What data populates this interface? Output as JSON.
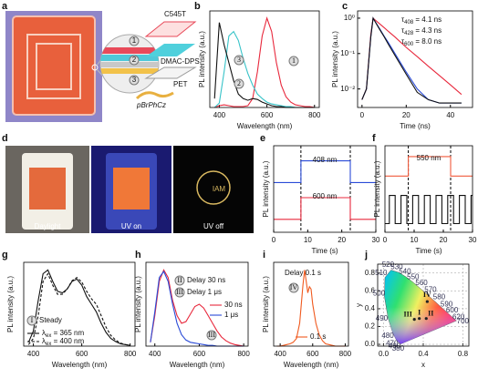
{
  "photo_panels": [
    {
      "panel_label": "a",
      "layer_numbers": [
        "1",
        "2",
        "3"
      ],
      "layer_names": [
        "C545T",
        "DMAC-DPS",
        "PET",
        "pBrPhCz"
      ]
    },
    {
      "panel_label": "d",
      "captions": [
        "Daylight",
        "UV on",
        "UV off"
      ],
      "logo_text": "IAM"
    }
  ],
  "chart_data": [
    {
      "type": "line",
      "panel_label": "b",
      "xlabel": "Wavelength (nm)",
      "ylabel": "PL intensity (a.u.)",
      "xlim": [
        360,
        820
      ],
      "xticks": [
        400,
        600,
        800
      ],
      "ylim": [
        0,
        1.08
      ],
      "x": [
        380,
        400,
        420,
        440,
        460,
        480,
        500,
        520,
        540,
        560,
        580,
        600,
        620,
        640,
        660,
        680,
        700,
        720,
        740,
        760,
        780,
        800
      ],
      "series": [
        {
          "color": "#e8283c",
          "values": [
            0,
            0.02,
            0.03,
            0.02,
            0.01,
            0.01,
            0.01,
            0.02,
            0.1,
            0.4,
            0.8,
            1.0,
            0.85,
            0.5,
            0.25,
            0.12,
            0.06,
            0.03,
            0.02,
            0.01,
            0.01,
            0
          ]
        },
        {
          "color": "#37c3c8",
          "values": [
            0,
            0.05,
            0.4,
            0.8,
            0.85,
            0.75,
            0.55,
            0.38,
            0.25,
            0.15,
            0.1,
            0.06,
            0.04,
            0.03,
            0.02,
            0.01,
            0.01,
            0,
            0,
            0,
            0,
            0
          ]
        },
        {
          "color": "#111111",
          "values": [
            0.1,
            0.95,
            0.7,
            0.5,
            0.3,
            0.15,
            0.1,
            0.08,
            0.1,
            0.09,
            0.06,
            0.04,
            0.02,
            0.01,
            0.01,
            0,
            0,
            0,
            0,
            0,
            0,
            0
          ]
        }
      ],
      "annotations": [
        {
          "text": "1",
          "circled": true
        },
        {
          "text": "2",
          "circled": true
        },
        {
          "text": "3",
          "circled": true
        }
      ]
    },
    {
      "type": "line",
      "panel_label": "c",
      "xlabel": "Time (ns)",
      "ylabel": "PL intensity (a.u.)",
      "log_y": true,
      "xlim": [
        -2,
        50
      ],
      "xticks": [
        0,
        20,
        40
      ],
      "ylim": [
        0.003,
        1.6
      ],
      "yticks": [
        {
          "value": 0.01,
          "label": "10⁻²"
        },
        {
          "value": 0.1,
          "label": "10⁻¹"
        },
        {
          "value": 1,
          "label": "10⁰"
        }
      ],
      "x": [
        0,
        2,
        4,
        5,
        6,
        8,
        10,
        12,
        15,
        20,
        25,
        30,
        35,
        40,
        45
      ],
      "series": [
        {
          "color": "#e8283c",
          "values": [
            0.005,
            0.01,
            0.35,
            1,
            0.88,
            0.69,
            0.54,
            0.42,
            0.29,
            0.15,
            0.082,
            0.044,
            0.024,
            0.013,
            0.007
          ]
        },
        {
          "color": "#2a4bd7",
          "values": [
            0.005,
            0.01,
            0.3,
            1,
            0.79,
            0.5,
            0.31,
            0.2,
            0.098,
            0.03,
            0.01,
            0.005,
            0.004,
            0.004,
            0.004
          ]
        },
        {
          "color": "#111111",
          "values": [
            0.005,
            0.01,
            0.3,
            1,
            0.78,
            0.48,
            0.3,
            0.18,
            0.087,
            0.026,
            0.008,
            0.005,
            0.004,
            0.004,
            0.004
          ]
        }
      ],
      "annotations": [
        {
          "text": "τ408 = 4.1 ns"
        },
        {
          "text": "τ428 = 4.3 ns"
        },
        {
          "text": "τ600 = 8.0 ns"
        }
      ]
    },
    {
      "type": "line",
      "panel_label": "e",
      "xlabel": "Time (s)",
      "ylabel": "PL intensity (a.u.)",
      "legend": "inline",
      "xlim": [
        0,
        30
      ],
      "xticks": [
        0,
        10,
        20,
        30
      ],
      "ylim": [
        0,
        4
      ],
      "dashed_lines_x": [
        8,
        22.5
      ],
      "series": [
        {
          "name": "408 nm",
          "color": "#2a4bd7",
          "x": [
            0,
            8,
            8,
            22.5,
            22.5,
            30
          ],
          "values": [
            2.3,
            2.3,
            3.3,
            3.3,
            2.3,
            2.3
          ]
        },
        {
          "name": "600 nm",
          "color": "#e8283c",
          "x": [
            0,
            8,
            8,
            22.5,
            22.5,
            30
          ],
          "values": [
            0.6,
            0.6,
            1.6,
            1.6,
            0.6,
            0.6
          ]
        }
      ]
    },
    {
      "type": "line",
      "panel_label": "f",
      "xlabel": "Time (s)",
      "ylabel": "PL intensity (a.u.)",
      "legend": "inline",
      "xlim": [
        0,
        30
      ],
      "xticks": [
        0,
        10,
        20,
        30
      ],
      "ylim": [
        0,
        4
      ],
      "dashed_lines_x": [
        8,
        22.5
      ],
      "series": [
        {
          "name": "550 nm",
          "color": "#f05a3c",
          "x": [
            0,
            8,
            8,
            22.5,
            22.5,
            30
          ],
          "values": [
            2.6,
            2.6,
            3.5,
            3.5,
            2.6,
            2.6
          ]
        },
        {
          "color": "#111111",
          "x": [
            0,
            1.5,
            1.5,
            3.5,
            3.5,
            5.5,
            5.5,
            7.5,
            7.5,
            9.5,
            9.5,
            11.5,
            11.5,
            13.5,
            13.5,
            15.5,
            15.5,
            17.5,
            17.5,
            19.5,
            19.5,
            21.5,
            21.5,
            23.5,
            23.5,
            25.5,
            25.5,
            27.5,
            27.5,
            29.5,
            29.5,
            30
          ],
          "values": [
            0.4,
            0.4,
            1.7,
            1.7,
            0.4,
            0.4,
            1.7,
            1.7,
            0.4,
            0.4,
            1.7,
            1.7,
            0.4,
            0.4,
            1.7,
            1.7,
            0.4,
            0.4,
            1.7,
            1.7,
            0.4,
            0.4,
            1.7,
            1.7,
            0.4,
            0.4,
            1.7,
            1.7,
            0.4,
            0.4,
            1.7,
            1.7
          ]
        }
      ]
    },
    {
      "type": "line",
      "panel_label": "g",
      "xlabel": "Wavelength (nm)",
      "ylabel": "PL intensity (a.u.)",
      "legend": "lower left",
      "xlim": [
        360,
        820
      ],
      "xticks": [
        400,
        600,
        800
      ],
      "ylim": [
        0,
        1.1
      ],
      "x": [
        380,
        400,
        420,
        440,
        460,
        480,
        500,
        520,
        540,
        560,
        580,
        600,
        620,
        640,
        660,
        680,
        700,
        720,
        740,
        760,
        780,
        800
      ],
      "series": [
        {
          "name": "λex = 365 nm",
          "color": "#111111",
          "dashed": false,
          "values": [
            0.05,
            0.2,
            0.6,
            0.95,
            1.0,
            0.85,
            0.72,
            0.7,
            0.75,
            0.85,
            0.88,
            0.8,
            0.65,
            0.55,
            0.45,
            0.3,
            0.18,
            0.1,
            0.06,
            0.03,
            0.02,
            0.01
          ]
        },
        {
          "name": "λex = 400 nm",
          "color": "#111111",
          "dashed": true,
          "values": [
            0.02,
            0.1,
            0.4,
            0.85,
            0.95,
            0.8,
            0.68,
            0.68,
            0.75,
            0.86,
            0.9,
            0.84,
            0.72,
            0.62,
            0.55,
            0.4,
            0.25,
            0.14,
            0.08,
            0.04,
            0.02,
            0.01
          ]
        }
      ],
      "annotations": [
        {
          "text": "I",
          "circled": true
        },
        {
          "text": "Steady"
        }
      ]
    },
    {
      "type": "line",
      "panel_label": "h",
      "xlabel": "Wavelength (nm)",
      "ylabel": "PL intensity (a.u.)",
      "legend": "center right",
      "xlim": [
        360,
        820
      ],
      "xticks": [
        400,
        600,
        800
      ],
      "ylim": [
        0,
        1.1
      ],
      "x": [
        380,
        400,
        420,
        440,
        460,
        480,
        500,
        520,
        540,
        560,
        580,
        600,
        620,
        640,
        660,
        680,
        700,
        720,
        740,
        760,
        780,
        800
      ],
      "series": [
        {
          "name": "30 ns",
          "color": "#e8283c",
          "values": [
            0.05,
            0.4,
            0.85,
            1.0,
            0.9,
            0.6,
            0.4,
            0.3,
            0.32,
            0.42,
            0.52,
            0.55,
            0.5,
            0.4,
            0.3,
            0.2,
            0.12,
            0.07,
            0.04,
            0.02,
            0.01,
            0
          ]
        },
        {
          "name": "1 μs",
          "color": "#2a4bd7",
          "values": [
            0.05,
            0.45,
            0.9,
            0.98,
            0.85,
            0.55,
            0.3,
            0.15,
            0.08,
            0.05,
            0.04,
            0.03,
            0.02,
            0.01,
            0.01,
            0,
            0,
            0,
            0,
            0,
            0,
            0
          ]
        }
      ],
      "annotations": [
        {
          "text": "II",
          "circled": true
        },
        {
          "text": "Delay 30 ns"
        },
        {
          "text": "III",
          "circled": true
        },
        {
          "text": "Delay 1 μs"
        },
        {
          "text": "III",
          "circled": true
        }
      ]
    },
    {
      "type": "line",
      "panel_label": "i",
      "xlabel": "Wavelength (nm)",
      "ylabel": "PL intensity (a.u.)",
      "legend": "lower center",
      "xlim": [
        360,
        820
      ],
      "xticks": [
        400,
        600,
        800
      ],
      "ylim": [
        0,
        1.1
      ],
      "x": [
        380,
        400,
        420,
        440,
        460,
        480,
        500,
        520,
        540,
        550,
        560,
        570,
        580,
        590,
        600,
        620,
        640,
        660,
        680,
        700,
        720,
        740,
        760,
        780,
        800
      ],
      "series": [
        {
          "name": "0.1 s",
          "color": "#f05a1f",
          "values": [
            0,
            0,
            0.01,
            0.02,
            0.03,
            0.05,
            0.1,
            0.3,
            0.8,
            1.0,
            0.85,
            0.7,
            0.78,
            0.75,
            0.55,
            0.3,
            0.15,
            0.07,
            0.03,
            0.02,
            0.01,
            0,
            0,
            0,
            0
          ]
        }
      ],
      "annotations": [
        {
          "text": "Delay 0.1 s"
        },
        {
          "text": "IV",
          "circled": true
        }
      ]
    },
    {
      "type": "scatter",
      "panel_label": "j",
      "xlabel": "x",
      "ylabel": "y",
      "grid": true,
      "xlim": [
        -0.06,
        0.86
      ],
      "xticks": [
        {
          "value": 0,
          "label": "0.0"
        },
        0.4,
        0.8
      ],
      "ylim": [
        -0.02,
        0.9
      ],
      "yticks": [
        {
          "value": 0,
          "label": "0.0"
        },
        0.2,
        0.4,
        0.6,
        0.8
      ],
      "categories": [
        "I",
        "II",
        "III",
        "IV"
      ],
      "x": [
        0.36,
        0.43,
        0.31,
        0.44
      ],
      "values": [
        0.29,
        0.29,
        0.28,
        0.48
      ],
      "color": "#222222",
      "locus_labels": [
        "380",
        "460",
        "470",
        "480",
        "490",
        "500",
        "510",
        "520",
        "530",
        "540",
        "550",
        "560",
        "570",
        "580",
        "590",
        "600",
        "620",
        "700"
      ]
    }
  ]
}
